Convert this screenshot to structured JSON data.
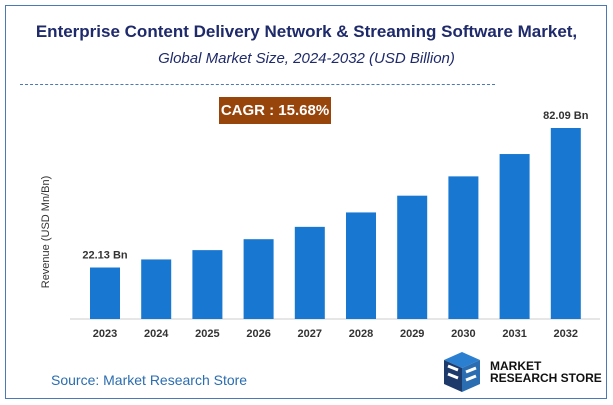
{
  "chart_data": {
    "type": "bar",
    "title": "Enterprise Content Delivery Network & Streaming Software Market,",
    "subtitle": "Global Market Size, 2024-2032 (USD Billion)",
    "ylabel": "Revenue (USD Mn/Bn)",
    "xlabel": "",
    "categories": [
      "2023",
      "2024",
      "2025",
      "2026",
      "2027",
      "2028",
      "2029",
      "2030",
      "2031",
      "2032"
    ],
    "values": [
      22.13,
      25.6,
      29.6,
      34.3,
      39.6,
      45.8,
      53.0,
      61.3,
      70.9,
      82.09
    ],
    "data_labels": {
      "0": "22.13 Bn",
      "9": "82.09 Bn"
    },
    "ylim": [
      0,
      90
    ],
    "grid": false,
    "bar_color": "#1777d1"
  },
  "cagr": "CAGR : 15.68%",
  "source": "Source: Market Research Store",
  "logo": {
    "line1": "MARKET",
    "line2": "RESEARCH STORE"
  }
}
